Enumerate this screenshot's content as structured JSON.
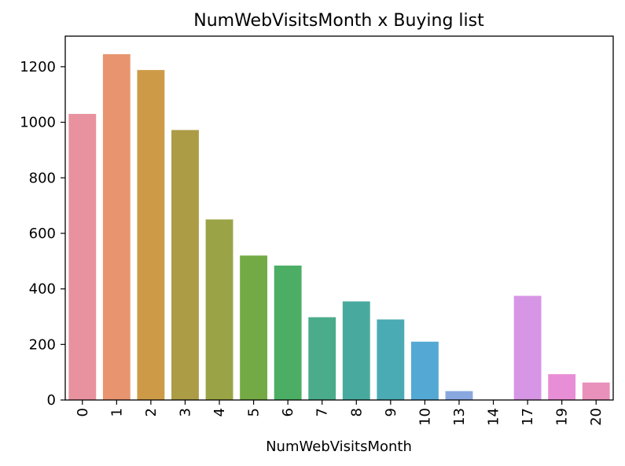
{
  "chart_data": {
    "type": "bar",
    "title": "NumWebVisitsMonth x Buying list",
    "xlabel": "NumWebVisitsMonth",
    "ylabel": "",
    "categories": [
      "0",
      "1",
      "2",
      "3",
      "4",
      "5",
      "6",
      "7",
      "8",
      "9",
      "10",
      "13",
      "14",
      "17",
      "19",
      "20"
    ],
    "values": [
      1030,
      1245,
      1188,
      972,
      650,
      520,
      484,
      298,
      355,
      290,
      210,
      32,
      0,
      375,
      93,
      63
    ],
    "colors": [
      "#e8929f",
      "#e8956f",
      "#cd9b47",
      "#ab9c45",
      "#9aa446",
      "#74aa45",
      "#4cae64",
      "#4bac8b",
      "#48aa9e",
      "#4aabb4",
      "#53a9d3",
      "#8aa8e0",
      "#b69be0",
      "#d796e5",
      "#e88ed6",
      "#e991bb"
    ],
    "ylim": [
      0,
      1310
    ],
    "yticks": [
      0,
      200,
      400,
      600,
      800,
      1000,
      1200
    ],
    "grid": false
  }
}
